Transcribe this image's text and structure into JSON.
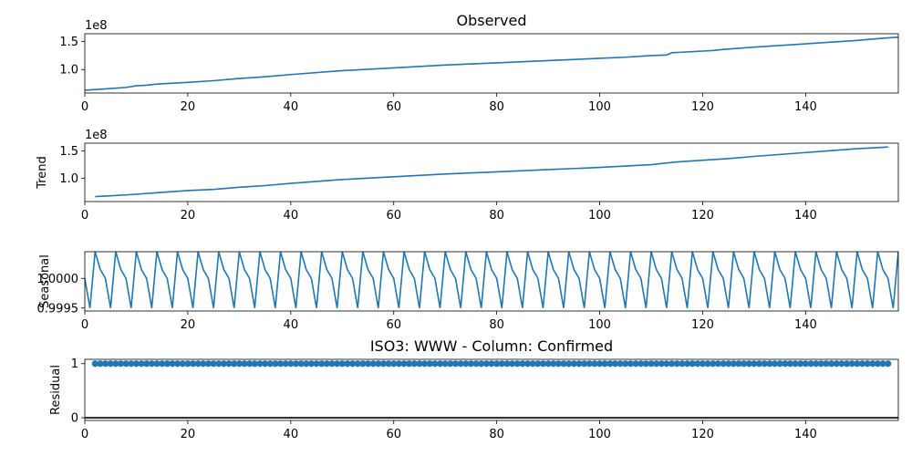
{
  "chart_data": [
    {
      "type": "line",
      "title": "Observed",
      "ylabel": "",
      "offset_text": "1e8",
      "xlim": [
        0,
        158
      ],
      "ylim": [
        0.58,
        1.64
      ],
      "xticks": [
        0,
        20,
        40,
        60,
        80,
        100,
        120,
        140
      ],
      "xtick_labels": [
        "0",
        "20",
        "40",
        "60",
        "80",
        "100",
        "120",
        "140"
      ],
      "yticks": [
        1.0,
        1.5
      ],
      "ytick_labels": [
        "1.0",
        "1.5"
      ],
      "color": "#1f77b4",
      "series": [
        {
          "x": [
            0,
            5,
            8,
            10,
            12,
            14,
            20,
            25,
            30,
            35,
            40,
            50,
            60,
            70,
            80,
            90,
            100,
            105,
            110,
            113,
            114,
            116,
            120,
            122,
            124,
            130,
            140,
            150,
            155,
            158
          ],
          "y": [
            0.63,
            0.66,
            0.68,
            0.71,
            0.72,
            0.74,
            0.77,
            0.8,
            0.84,
            0.87,
            0.91,
            0.98,
            1.03,
            1.08,
            1.12,
            1.16,
            1.2,
            1.22,
            1.25,
            1.26,
            1.3,
            1.31,
            1.33,
            1.34,
            1.36,
            1.4,
            1.46,
            1.52,
            1.56,
            1.58
          ]
        }
      ]
    },
    {
      "type": "line",
      "title": "",
      "ylabel": "Trend",
      "offset_text": "1e8",
      "xlim": [
        0,
        158
      ],
      "ylim": [
        0.58,
        1.64
      ],
      "xticks": [
        0,
        20,
        40,
        60,
        80,
        100,
        120,
        140
      ],
      "xtick_labels": [
        "0",
        "20",
        "40",
        "60",
        "80",
        "100",
        "120",
        "140"
      ],
      "yticks": [
        1.0,
        1.5
      ],
      "ytick_labels": [
        "1.0",
        "1.5"
      ],
      "color": "#1f77b4",
      "series": [
        {
          "x": [
            2,
            8,
            14,
            20,
            25,
            30,
            35,
            40,
            50,
            60,
            70,
            80,
            90,
            100,
            110,
            112,
            115,
            120,
            125,
            130,
            140,
            150,
            156
          ],
          "y": [
            0.67,
            0.7,
            0.74,
            0.78,
            0.8,
            0.84,
            0.87,
            0.91,
            0.98,
            1.03,
            1.08,
            1.12,
            1.16,
            1.2,
            1.25,
            1.27,
            1.3,
            1.33,
            1.36,
            1.4,
            1.47,
            1.54,
            1.57
          ]
        }
      ]
    },
    {
      "type": "line",
      "title": "",
      "ylabel": "Seasonal",
      "offset_text": "",
      "xlim": [
        0,
        158
      ],
      "ylim": [
        0.99945,
        1.00045
      ],
      "xticks": [
        0,
        20,
        40,
        60,
        80,
        100,
        120,
        140
      ],
      "xtick_labels": [
        "0",
        "20",
        "40",
        "60",
        "80",
        "100",
        "120",
        "140"
      ],
      "yticks": [
        0.9995,
        1.0
      ],
      "ytick_labels": [
        "0.9995",
        "1.0000"
      ],
      "color": "#1f77b4",
      "period": 4,
      "pattern": [
        1.0,
        0.9995,
        1.00045,
        1.00015
      ]
    },
    {
      "type": "scatter",
      "title": "ISO3: WWW - Column: Confirmed",
      "ylabel": "Residual",
      "offset_text": "",
      "xlim": [
        0,
        158
      ],
      "ylim": [
        -0.05,
        1.08
      ],
      "xticks": [
        0,
        20,
        40,
        60,
        80,
        100,
        120,
        140
      ],
      "xtick_labels": [
        "0",
        "20",
        "40",
        "60",
        "80",
        "100",
        "120",
        "140"
      ],
      "yticks": [
        0,
        1
      ],
      "ytick_labels": [
        "0",
        "1"
      ],
      "color": "#1f77b4",
      "x_start": 2,
      "x_end": 156,
      "residual_value": 1.0,
      "baseline": 0
    }
  ]
}
